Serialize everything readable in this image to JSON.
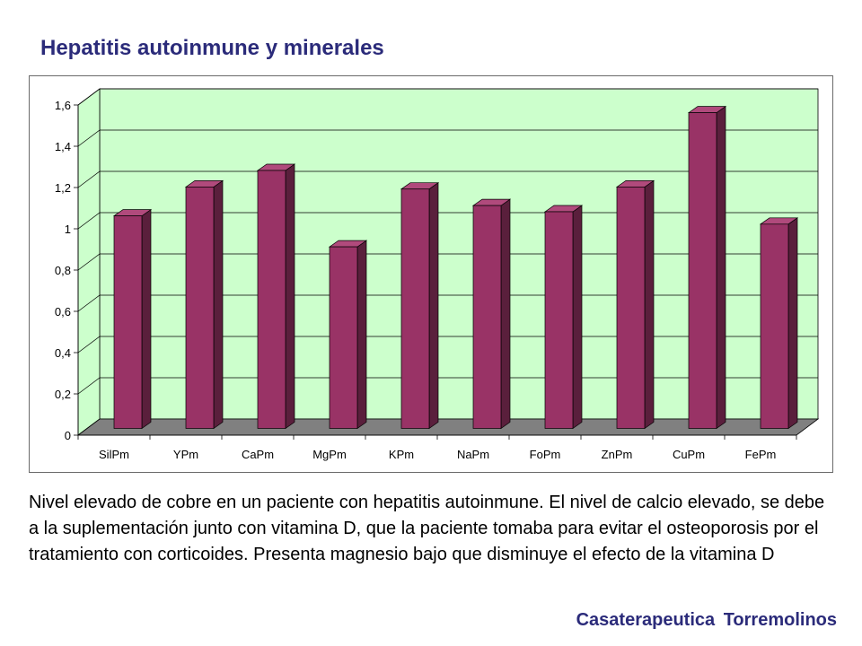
{
  "title": "Hepatitis autoinmune y minerales",
  "description": "Nivel elevado de cobre en un paciente con hepatitis autoinmune. El nivel de calcio elevado, se debe a la suplementación junto con vitamina D, que la paciente tomaba para evitar el osteoporosis por el tratamiento con corticoides. Presenta magnesio bajo que disminuye el efecto de la vitamina D",
  "footer": "Casaterapeutica Torremolinos",
  "chart_data": {
    "type": "bar",
    "categories": [
      "SilPm",
      "YPm",
      "CaPm",
      "MgPm",
      "KPm",
      "NaPm",
      "FoPm",
      "ZnPm",
      "CuPm",
      "FePm"
    ],
    "values": [
      1.03,
      1.17,
      1.25,
      0.88,
      1.16,
      1.08,
      1.05,
      1.17,
      1.53,
      0.99
    ],
    "ylim": [
      0,
      1.6
    ],
    "yticks": [
      0,
      0.2,
      0.4,
      0.6,
      0.8,
      1,
      1.2,
      1.4,
      1.6
    ],
    "ytick_labels": [
      "0",
      "0,2",
      "0,4",
      "0,6",
      "0,8",
      "1",
      "1,2",
      "1,4",
      "1,6"
    ],
    "grid": true,
    "style": "3d-columns",
    "colors": {
      "bar_front": "#993366",
      "bar_side": "#5a1f3c",
      "bar_top": "#b04a7c",
      "wall": "#ccffcc",
      "floor": "#808080",
      "gridline": "#000000"
    }
  }
}
